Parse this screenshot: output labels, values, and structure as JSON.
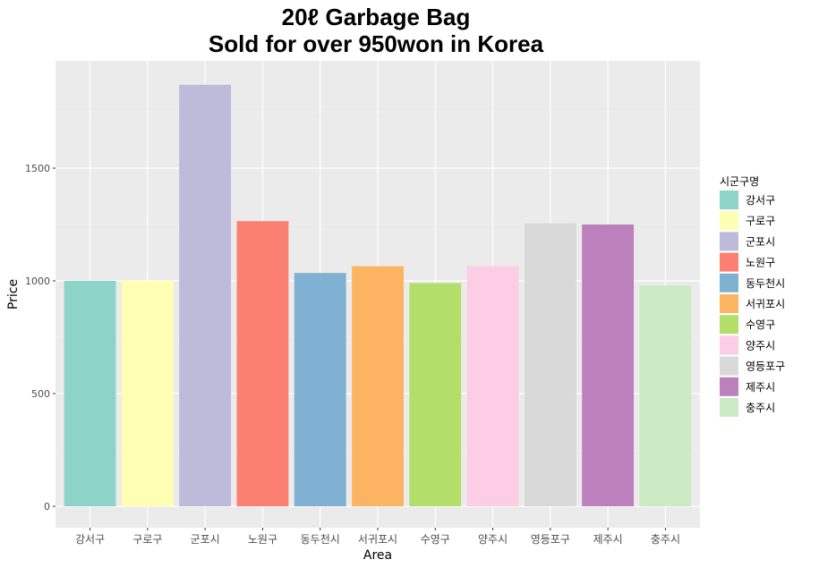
{
  "chart_data": {
    "type": "bar",
    "title_line1": "20ℓ Garbage Bag",
    "title_line2": "Sold for over 950won in Korea",
    "xlabel": "Area",
    "ylabel": "Price",
    "ylim": [
      0,
      1930
    ],
    "yticks": [
      0,
      500,
      1000,
      1500
    ],
    "grid": true,
    "legend_title": "시군구명",
    "legend_position": "right",
    "categories": [
      "강서구",
      "구로구",
      "군포시",
      "노원구",
      "동두천시",
      "서귀포시",
      "수영구",
      "양주시",
      "영등포구",
      "제주시",
      "충주시"
    ],
    "values": [
      1000,
      1000,
      1870,
      1265,
      1035,
      1065,
      990,
      1065,
      1255,
      1250,
      980
    ],
    "colors": [
      "#8DD3C7",
      "#FFFFB3",
      "#BEBADA",
      "#FB8072",
      "#80B1D3",
      "#FDB462",
      "#B3DE69",
      "#FCCDE5",
      "#D9D9D9",
      "#BC80BD",
      "#CCEBC5"
    ]
  }
}
